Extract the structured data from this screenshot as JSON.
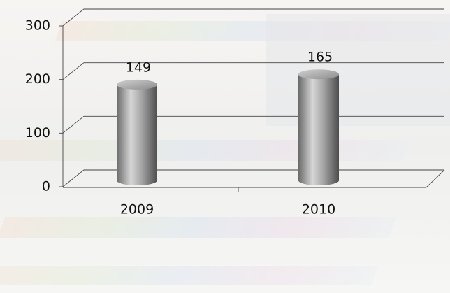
{
  "chart_data": {
    "type": "bar",
    "categories": [
      "2009",
      "2010"
    ],
    "values": [
      149,
      165
    ],
    "color": "#9a9a9a",
    "ylim": [
      0,
      300
    ],
    "yticks": [
      0,
      100,
      200,
      300
    ],
    "grid": true
  }
}
